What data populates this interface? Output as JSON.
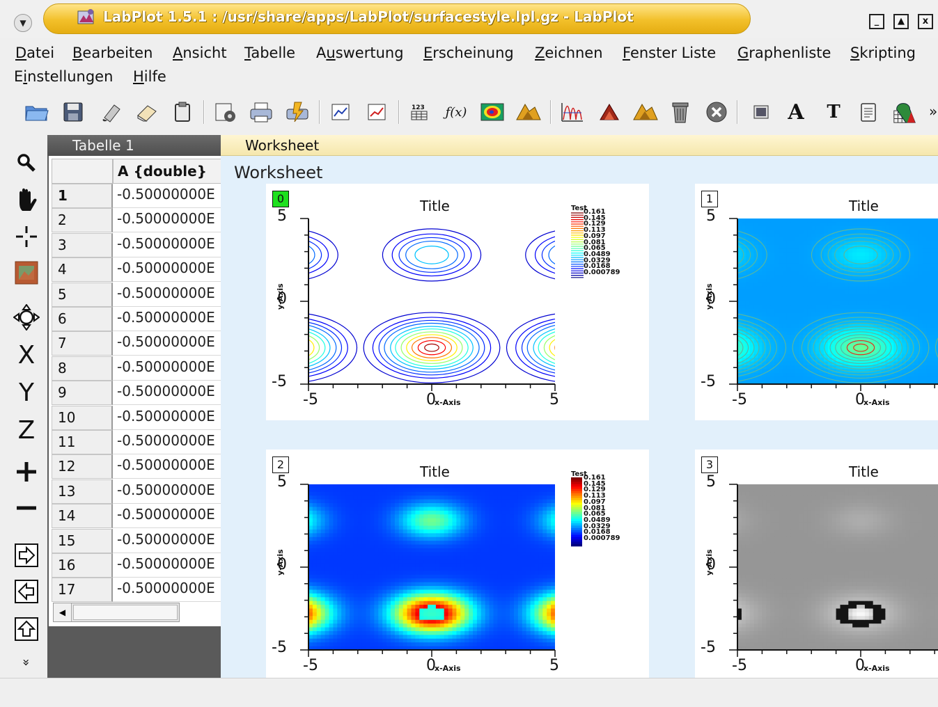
{
  "window": {
    "title": "LabPlot 1.5.1 : /usr/share/apps/LabPlot/surfacestyle.lpl.gz - LabPlot"
  },
  "menu": [
    {
      "label": "Datei",
      "ul": "D"
    },
    {
      "label": "Bearbeiten",
      "ul": "B"
    },
    {
      "label": "Ansicht",
      "ul": "A"
    },
    {
      "label": "Tabelle",
      "ul": "T"
    },
    {
      "label": "Auswertung",
      "ul": "u"
    },
    {
      "label": "Erscheinung",
      "ul": "E"
    },
    {
      "label": "Zeichnen",
      "ul": "Z"
    },
    {
      "label": "Fenster Liste",
      "ul": "F"
    },
    {
      "label": "Graphenliste",
      "ul": "G"
    },
    {
      "label": "Skripting",
      "ul": "S"
    },
    {
      "label": "Einstellungen",
      "ul": "i"
    },
    {
      "label": "Hilfe",
      "ul": "H"
    }
  ],
  "toolbar": {
    "icons": [
      "open-folder-icon",
      "save-icon",
      "paint-icon",
      "eraser-icon",
      "clipboard-icon",
      "new-worksheet-icon",
      "print-icon",
      "print-preview-icon",
      "plot-2d-icon",
      "plot-surface-icon",
      "spreadsheet-numbers-icon",
      "function-icon",
      "contour-map-icon",
      "surface-plot-icon",
      "histogram-icon",
      "3d-plot-icon",
      "qwt-3d-icon",
      "trash-icon",
      "close-circle-icon",
      "image-icon",
      "text-bold-icon",
      "text-icon",
      "notes-icon",
      "graph-wizard-icon"
    ],
    "function_label": "ƒ(x)",
    "numbers_label": "123",
    "bold_text_label": "A",
    "text_label": "T",
    "more_label": "»"
  },
  "left_toolbar": {
    "icons": [
      "zoom-icon",
      "pan-hand-icon",
      "crosshair-icon",
      "image-tool-icon",
      "move-arrows-icon",
      "x-axis-icon",
      "y-axis-icon",
      "z-axis-icon",
      "zoom-in-icon",
      "zoom-out-icon",
      "arrow-right-icon",
      "arrow-left-icon",
      "arrow-up-icon",
      "expand-more-icon"
    ],
    "x_label": "X",
    "y_label": "Y",
    "z_label": "Z",
    "plus_label": "+",
    "more_label": "»"
  },
  "spreadsheet": {
    "title": "Tabelle 1",
    "column_header": "A {double}",
    "rows": [
      {
        "n": "1",
        "v": "-0.50000000E"
      },
      {
        "n": "2",
        "v": "-0.50000000E"
      },
      {
        "n": "3",
        "v": "-0.50000000E"
      },
      {
        "n": "4",
        "v": "-0.50000000E"
      },
      {
        "n": "5",
        "v": "-0.50000000E"
      },
      {
        "n": "6",
        "v": "-0.50000000E"
      },
      {
        "n": "7",
        "v": "-0.50000000E"
      },
      {
        "n": "8",
        "v": "-0.50000000E"
      },
      {
        "n": "9",
        "v": "-0.50000000E"
      },
      {
        "n": "10",
        "v": "-0.50000000E"
      },
      {
        "n": "11",
        "v": "-0.50000000E"
      },
      {
        "n": "12",
        "v": "-0.50000000E"
      },
      {
        "n": "13",
        "v": "-0.50000000E"
      },
      {
        "n": "14",
        "v": "-0.50000000E"
      },
      {
        "n": "15",
        "v": "-0.50000000E"
      },
      {
        "n": "16",
        "v": "-0.50000000E"
      },
      {
        "n": "17",
        "v": "-0.50000000E"
      }
    ]
  },
  "worksheet": {
    "tab_label": "Worksheet",
    "label": "Worksheet",
    "plots": [
      {
        "num": "0",
        "title": "Title",
        "style": "contour",
        "x_ticks": [
          "-5",
          "0",
          "5"
        ],
        "y_ticks": [
          "5",
          "0",
          "-5"
        ],
        "x_axis_label": "x-Axis",
        "y_axis_label": "y-Axis",
        "legend_title": "Test",
        "legend": [
          "0.161",
          "0.145",
          "0.129",
          "0.113",
          "0.097",
          "0.081",
          "0.065",
          "0.0489",
          "0.0329",
          "0.0168",
          "0.000789"
        ],
        "active": true
      },
      {
        "num": "1",
        "title": "Title",
        "style": "colormap-contour",
        "x_ticks": [
          "-5",
          "0"
        ],
        "y_ticks": [
          "5",
          "0",
          "-5"
        ],
        "x_axis_label": "x-Axis",
        "y_axis_label": "y-Axis"
      },
      {
        "num": "2",
        "title": "Title",
        "style": "colormap",
        "x_ticks": [
          "-5",
          "0",
          "5"
        ],
        "y_ticks": [
          "5",
          "0",
          "-5"
        ],
        "x_axis_label": "x-Axis",
        "y_axis_label": "y-Axis",
        "legend_title": "Test",
        "legend": [
          "0.161",
          "0.145",
          "0.129",
          "0.113",
          "0.097",
          "0.081",
          "0.065",
          "0.0489",
          "0.0329",
          "0.0168",
          "0.000789"
        ]
      },
      {
        "num": "3",
        "title": "Title",
        "style": "grayscale",
        "x_ticks": [
          "-5",
          "0"
        ],
        "y_ticks": [
          "5",
          "0",
          "-5"
        ],
        "x_axis_label": "x-Axis",
        "y_axis_label": "y-Axis"
      }
    ]
  },
  "colors": {
    "title_accent": "#f2c02a",
    "worksheet_bg": "#e2f0fb",
    "worksheet_tab_bg": "#f5e7ad",
    "sheet_title_bg": "#5a5a5a",
    "active_plot_marker": "#1ee01e"
  }
}
